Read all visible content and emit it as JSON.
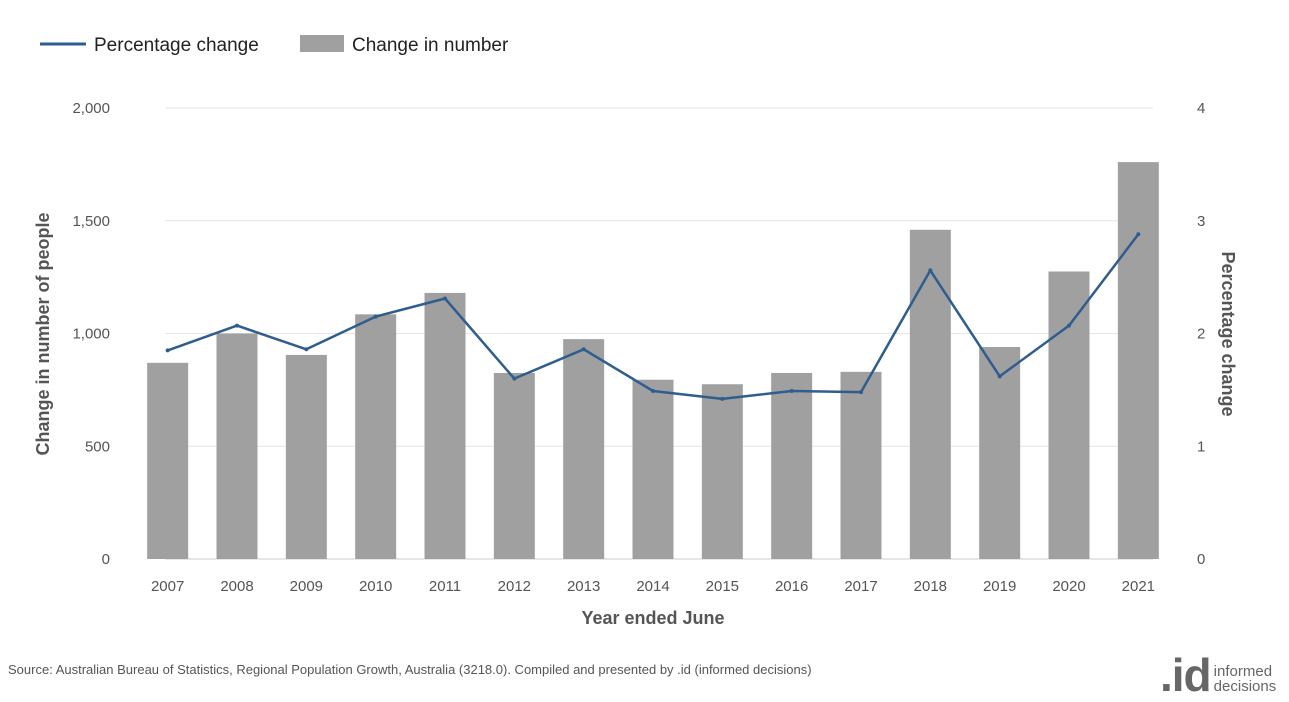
{
  "legend": {
    "line_label": "Percentage change",
    "bar_label": "Change in number"
  },
  "source": "Source: Australian Bureau of Statistics, Regional Population Growth, Australia (3218.0). Compiled and presented by .id (informed decisions)",
  "logo": {
    "mark": ".id",
    "line1": "informed",
    "line2": "decisions"
  },
  "colors": {
    "bar": "#a0a0a0",
    "line": "#2f5d8e",
    "grid": "#e6e6e6"
  },
  "chart_data": {
    "type": "bar",
    "xlabel": "Year ended June",
    "ylabel": "Change in number of people",
    "y2label": "Percentage change",
    "categories": [
      "2007",
      "2008",
      "2009",
      "2010",
      "2011",
      "2012",
      "2013",
      "2014",
      "2015",
      "2016",
      "2017",
      "2018",
      "2019",
      "2020",
      "2021"
    ],
    "series": [
      {
        "name": "Change in number",
        "type": "bar",
        "axis": "left",
        "values": [
          870,
          1000,
          905,
          1085,
          1180,
          825,
          975,
          795,
          775,
          825,
          830,
          1460,
          940,
          1275,
          1760
        ]
      },
      {
        "name": "Percentage change",
        "type": "line",
        "axis": "right",
        "values": [
          1.85,
          2.07,
          1.86,
          2.15,
          2.31,
          1.6,
          1.86,
          1.49,
          1.42,
          1.49,
          1.48,
          2.56,
          1.62,
          2.07,
          2.88
        ]
      }
    ],
    "ylim": [
      0,
      2000
    ],
    "yticks": [
      "0",
      "500",
      "1,000",
      "1,500",
      "2,000"
    ],
    "y2lim": [
      0,
      4
    ],
    "y2ticks": [
      "0",
      "1",
      "2",
      "3",
      "4"
    ],
    "grid": true,
    "legend_position": "top-left"
  }
}
